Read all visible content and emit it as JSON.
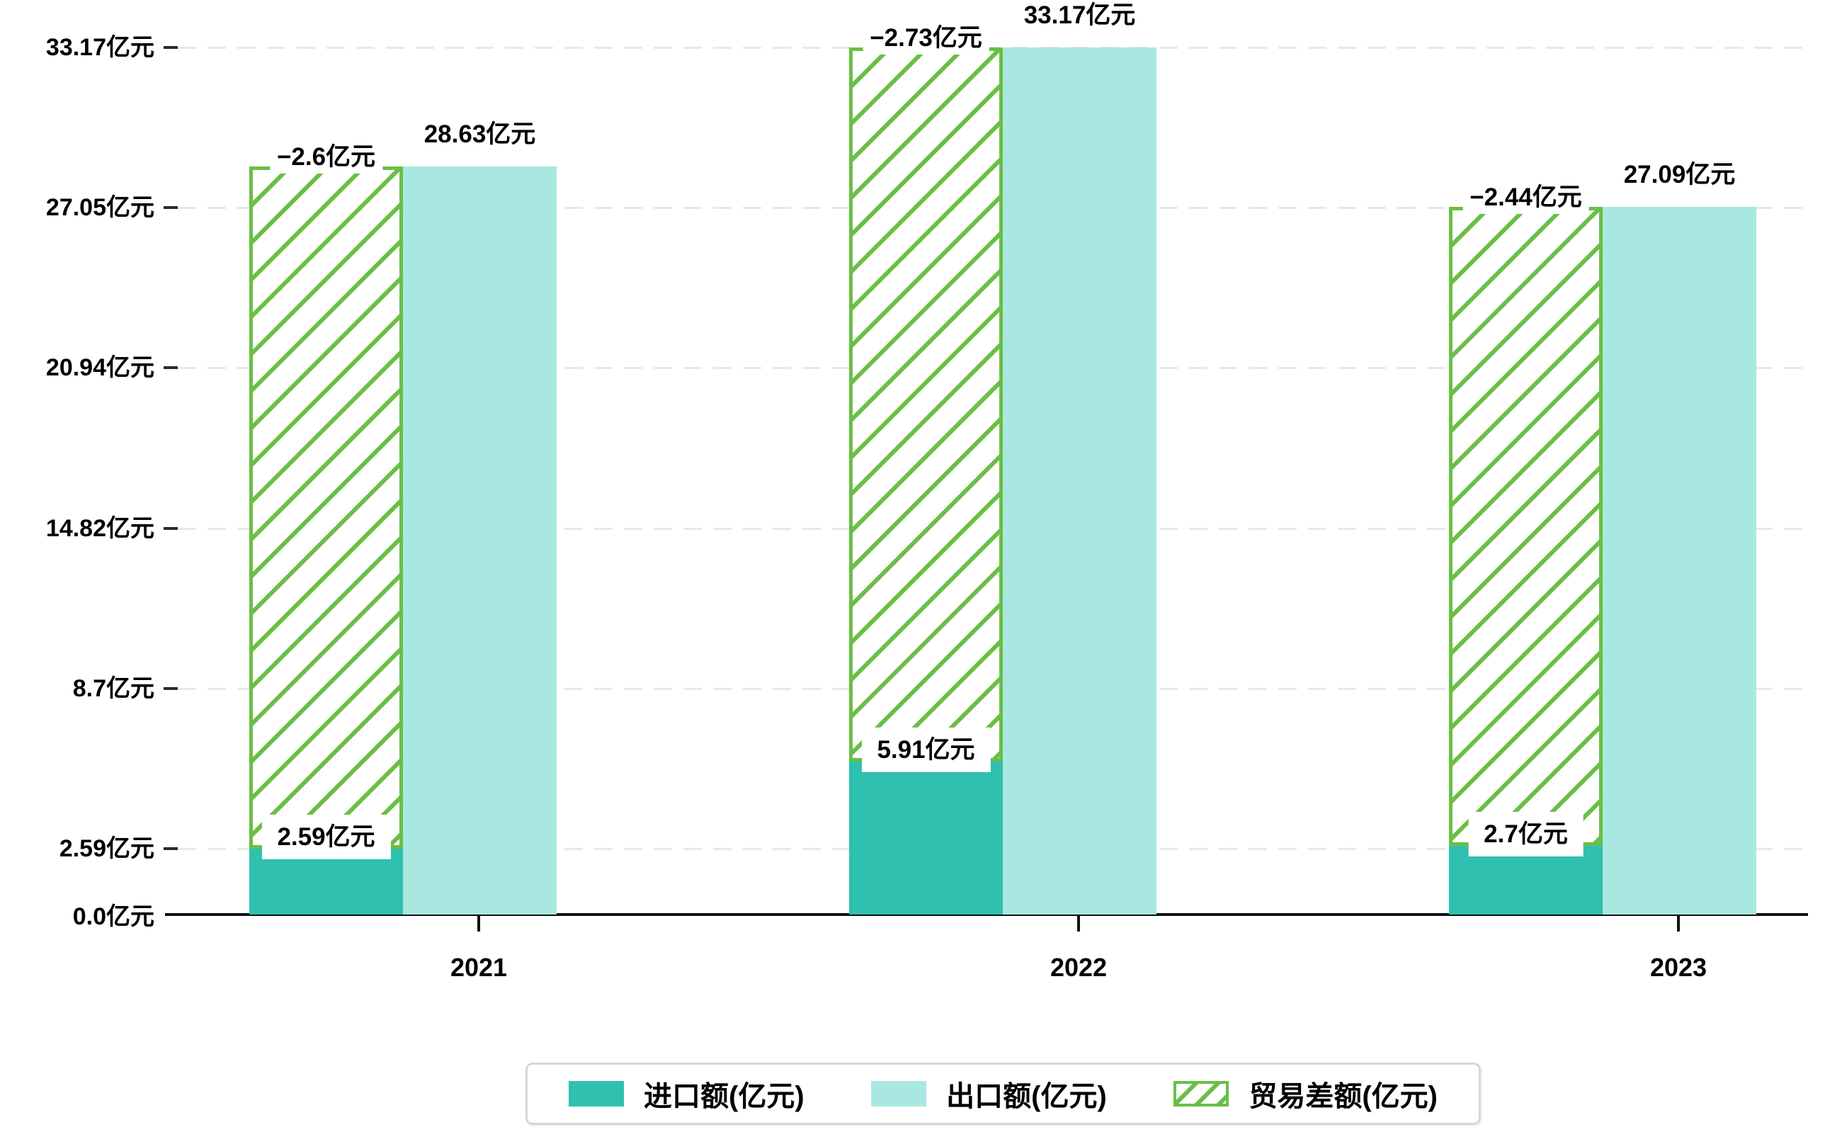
{
  "chart_data": {
    "type": "bar",
    "title": "",
    "categories": [
      "2021",
      "2022",
      "2023"
    ],
    "series": [
      {
        "name": "进口额(亿元)",
        "role": "import",
        "values": [
          2.59,
          5.91,
          2.7
        ],
        "value_labels": [
          "2.59亿元",
          "5.91亿元",
          "2.7亿元"
        ],
        "color": "#2FC0B0",
        "style": "solid"
      },
      {
        "name": "出口额(亿元)",
        "role": "export",
        "values": [
          28.63,
          33.17,
          27.09
        ],
        "value_labels": [
          "28.63亿元",
          "33.17亿元",
          "27.09亿元"
        ],
        "color": "#A9E8E0",
        "style": "solid"
      },
      {
        "name": "贸易差额(亿元)",
        "role": "trade-balance",
        "values": [
          -2.6,
          -2.73,
          -2.44
        ],
        "value_labels": [
          "−2.6亿元",
          "−2.73亿元",
          "−2.44亿元"
        ],
        "color": "#6ABF45",
        "style": "hatched",
        "bar_span": "from import value up to export value (floating hatched bar)"
      }
    ],
    "y_ticks": [
      {
        "value": 0,
        "label": "0.0亿元"
      },
      {
        "value": 2.59,
        "label": "2.59亿元"
      },
      {
        "value": 8.7,
        "label": "8.7亿元"
      },
      {
        "value": 14.82,
        "label": "14.82亿元"
      },
      {
        "value": 20.94,
        "label": "20.94亿元"
      },
      {
        "value": 27.05,
        "label": "27.05亿元"
      },
      {
        "value": 33.17,
        "label": "33.17亿元"
      }
    ],
    "ylim": [
      0,
      34.6
    ],
    "xlabel": "",
    "ylabel": "",
    "grid": "horizontal dashed",
    "legend_position": "bottom-center"
  },
  "colors": {
    "import_bar": "#2FC0B0",
    "export_bar": "#A9E8E0",
    "balance_hatch": "#6ABF45",
    "axis": "#111111",
    "tick_dash": "#2b2b2b",
    "gridline": "#e8e8e8",
    "text": "#000000",
    "legend_border": "#d6d6d6",
    "background": "#ffffff"
  }
}
